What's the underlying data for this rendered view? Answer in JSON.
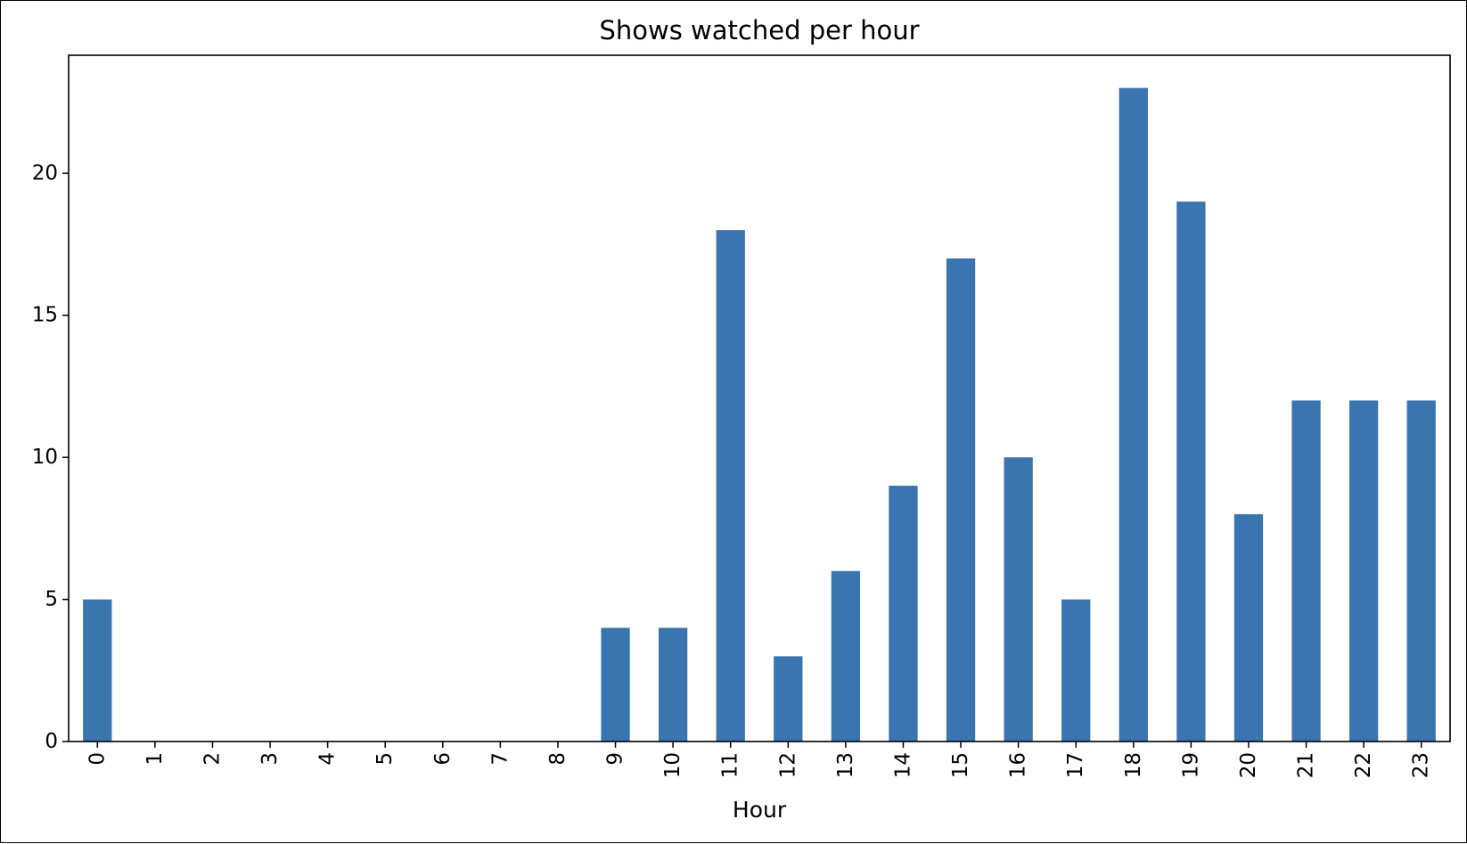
{
  "chart_data": {
    "type": "bar",
    "title": "Shows watched per hour",
    "xlabel": "Hour",
    "ylabel": "",
    "categories": [
      "0",
      "1",
      "2",
      "3",
      "4",
      "5",
      "6",
      "7",
      "8",
      "9",
      "10",
      "11",
      "12",
      "13",
      "14",
      "15",
      "16",
      "17",
      "18",
      "19",
      "20",
      "21",
      "22",
      "23"
    ],
    "values": [
      5,
      0,
      0,
      0,
      0,
      0,
      0,
      0,
      0,
      4,
      4,
      18,
      3,
      6,
      9,
      17,
      10,
      5,
      23,
      19,
      8,
      12,
      12,
      12
    ],
    "ylim": [
      0,
      24.15
    ],
    "yticks": [
      0,
      5,
      10,
      15,
      20
    ],
    "bar_color": "#3a75af",
    "xtick_rotation": "vertical",
    "grid": false,
    "legend": "none"
  }
}
